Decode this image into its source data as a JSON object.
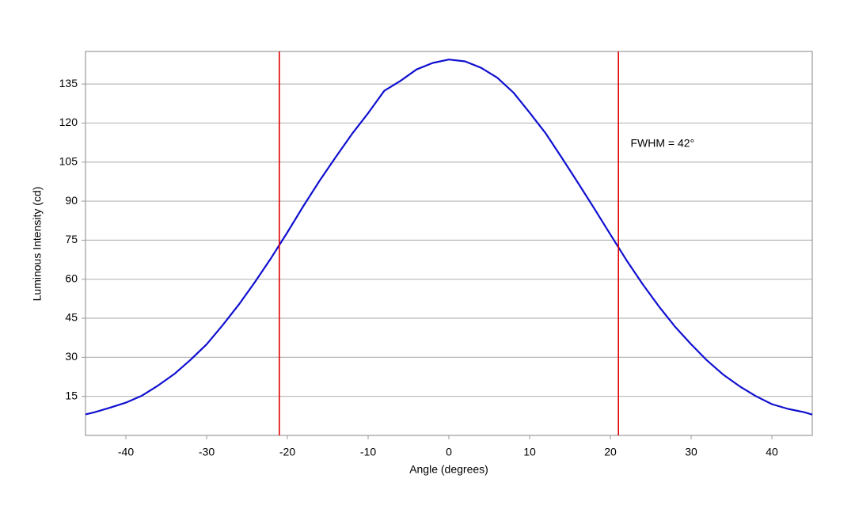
{
  "chart_data": {
    "type": "line",
    "x_label": "Angle (degrees)",
    "y_label": "Luminous Intensity (cd)",
    "x": [
      -45,
      -44,
      -42,
      -40,
      -38,
      -36,
      -34,
      -32,
      -30,
      -28,
      -26,
      -24,
      -22,
      -20,
      -18,
      -16,
      -14,
      -12,
      -10,
      -8,
      -6,
      -4,
      -2,
      0,
      2,
      4,
      6,
      8,
      10,
      12,
      14,
      16,
      18,
      20,
      22,
      24,
      26,
      28,
      30,
      32,
      34,
      36,
      38,
      40,
      42,
      44,
      45
    ],
    "series": [
      {
        "name": "Luminous Intensity",
        "color": "#1010d0",
        "values": [
          8.1,
          8.8,
          10.6,
          12.6,
          15.3,
          19.2,
          23.6,
          29.0,
          35.0,
          42.4,
          50.3,
          59.0,
          68.2,
          78.0,
          88.2,
          97.9,
          107.0,
          115.8,
          123.8,
          132.4,
          136.2,
          140.6,
          143.1,
          144.4,
          143.7,
          141.2,
          137.4,
          131.7,
          124.0,
          116.0,
          106.6,
          97.0,
          87.2,
          77.2,
          67.3,
          58.1,
          49.6,
          41.8,
          35.0,
          28.7,
          23.3,
          18.9,
          15.1,
          12.0,
          10.2,
          8.9,
          8.0
        ]
      }
    ],
    "vlines": [
      {
        "value": -21,
        "color": "#e00000"
      },
      {
        "value": 21,
        "color": "#e00000"
      }
    ],
    "annotation": {
      "text": "FWHM = 42°",
      "x": 22.5,
      "y": 112
    },
    "xlim": [
      -45,
      45
    ],
    "xticks": [
      -40,
      -30,
      -20,
      -10,
      0,
      10,
      20,
      30,
      40
    ],
    "ylim": [
      0,
      147.5
    ],
    "yticks": [
      15,
      30,
      45,
      60,
      75,
      90,
      105,
      120,
      135
    ],
    "grid": true
  }
}
